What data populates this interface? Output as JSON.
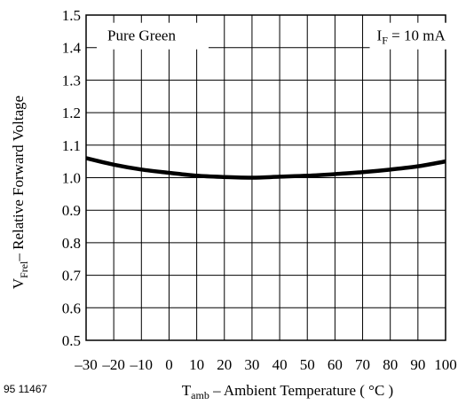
{
  "figure_id": "95 11467",
  "chart_data": {
    "type": "line",
    "xlabel": {
      "main": "T",
      "sub": "amb",
      "rest": " – Ambient Temperature ( °C )"
    },
    "ylabel": {
      "main": "V",
      "sub": "Frel",
      "rest": "– Relative Forward Voltage"
    },
    "xlim": [
      -30,
      100
    ],
    "ylim": [
      0.5,
      1.5
    ],
    "x_ticks": [
      -30,
      -20,
      -10,
      0,
      10,
      20,
      30,
      40,
      50,
      60,
      70,
      80,
      90,
      100
    ],
    "x_tick_labels": [
      "–30",
      "–20",
      "–10",
      "0",
      "10",
      "20",
      "30",
      "40",
      "50",
      "60",
      "70",
      "80",
      "90",
      "100"
    ],
    "y_ticks": [
      0.5,
      0.6,
      0.7,
      0.8,
      0.9,
      1.0,
      1.1,
      1.2,
      1.3,
      1.4,
      1.5
    ],
    "y_tick_labels": [
      "0.5",
      "0.6",
      "0.7",
      "0.8",
      "0.9",
      "1.0",
      "1.1",
      "1.2",
      "1.3",
      "1.4",
      "1.5"
    ],
    "grid": true,
    "annotations": {
      "left": "Pure Green",
      "right": {
        "main": "I",
        "sub": "F",
        "rest": " = 10 mA"
      }
    },
    "series": [
      {
        "x": [
          -30,
          -20,
          -10,
          0,
          10,
          20,
          30,
          40,
          50,
          60,
          70,
          80,
          90,
          100
        ],
        "y": [
          1.06,
          1.04,
          1.025,
          1.015,
          1.006,
          1.002,
          1.0,
          1.003,
          1.006,
          1.011,
          1.017,
          1.025,
          1.035,
          1.05
        ]
      }
    ]
  }
}
